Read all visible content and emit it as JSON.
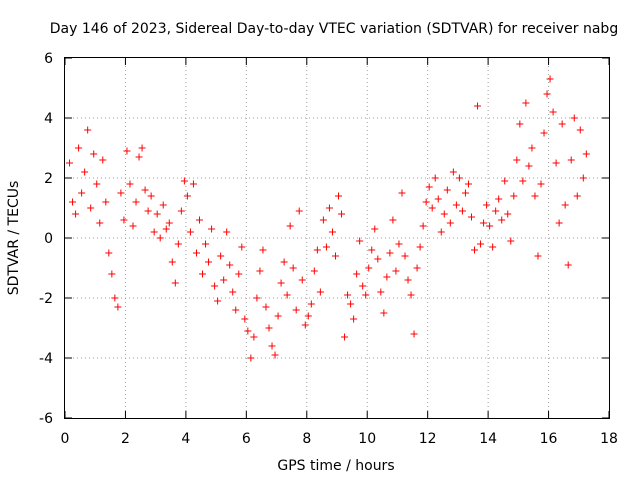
{
  "chart_data": {
    "type": "scatter",
    "title": "Day 146 of 2023, Sidereal Day-to-day VTEC variation (SDTVAR) for receiver nabg",
    "xlabel": "GPS time / hours",
    "ylabel": "SDTVAR / TECUs",
    "xlim": [
      0,
      18
    ],
    "ylim": [
      -6,
      6
    ],
    "xticks": [
      "0",
      "2",
      "4",
      "6",
      "8",
      "10",
      "12",
      "14",
      "16",
      "18"
    ],
    "yticks": [
      "-6",
      "-4",
      "-2",
      "0",
      "2",
      "4",
      "6"
    ],
    "grid": true,
    "legend": null,
    "marker": "+",
    "color": "#ff0000",
    "series": [
      {
        "name": "SDTVAR",
        "x": [
          0.15,
          0.25,
          0.35,
          0.45,
          0.55,
          0.65,
          0.75,
          0.85,
          0.95,
          1.05,
          1.15,
          1.25,
          1.35,
          1.45,
          1.55,
          1.65,
          1.75,
          1.85,
          1.95,
          2.05,
          2.15,
          2.25,
          2.35,
          2.45,
          2.55,
          2.65,
          2.75,
          2.85,
          2.95,
          3.05,
          3.15,
          3.25,
          3.35,
          3.45,
          3.55,
          3.65,
          3.75,
          3.85,
          3.95,
          4.05,
          4.15,
          4.25,
          4.35,
          4.45,
          4.55,
          4.65,
          4.75,
          4.85,
          4.95,
          5.05,
          5.15,
          5.25,
          5.35,
          5.45,
          5.55,
          5.65,
          5.75,
          5.85,
          5.95,
          6.05,
          6.15,
          6.25,
          6.35,
          6.45,
          6.55,
          6.65,
          6.75,
          6.85,
          6.95,
          7.05,
          7.15,
          7.25,
          7.35,
          7.45,
          7.55,
          7.65,
          7.75,
          7.85,
          7.95,
          8.05,
          8.15,
          8.25,
          8.35,
          8.45,
          8.55,
          8.65,
          8.75,
          8.85,
          8.95,
          9.05,
          9.15,
          9.25,
          9.35,
          9.45,
          9.55,
          9.65,
          9.75,
          9.85,
          9.95,
          10.05,
          10.15,
          10.25,
          10.35,
          10.45,
          10.55,
          10.65,
          10.75,
          10.85,
          10.95,
          11.05,
          11.15,
          11.25,
          11.35,
          11.45,
          11.55,
          11.65,
          11.75,
          11.85,
          11.95,
          12.05,
          12.15,
          12.25,
          12.35,
          12.45,
          12.55,
          12.65,
          12.75,
          12.85,
          12.95,
          13.05,
          13.15,
          13.25,
          13.35,
          13.45,
          13.55,
          13.65,
          13.75,
          13.85,
          13.95,
          14.05,
          14.15,
          14.25,
          14.35,
          14.45,
          14.55,
          14.65,
          14.75,
          14.85,
          14.95,
          15.05,
          15.15,
          15.25,
          15.35,
          15.45,
          15.55,
          15.65,
          15.75,
          15.85,
          15.95,
          16.05,
          16.15,
          16.25,
          16.35,
          16.45,
          16.55,
          16.65,
          16.75,
          16.85,
          16.95,
          17.05,
          17.15,
          17.25
        ],
        "y": [
          2.5,
          1.2,
          0.8,
          3.0,
          1.5,
          2.2,
          3.6,
          1.0,
          2.8,
          1.8,
          0.5,
          2.6,
          1.2,
          -0.5,
          -1.2,
          -2.0,
          -2.3,
          1.5,
          0.6,
          2.9,
          1.8,
          0.4,
          1.2,
          2.7,
          3.0,
          1.6,
          0.9,
          1.4,
          0.2,
          0.8,
          0.0,
          1.1,
          0.3,
          0.5,
          -0.8,
          -1.5,
          -0.2,
          0.9,
          1.9,
          1.4,
          0.2,
          1.8,
          -0.5,
          0.6,
          -1.2,
          -0.2,
          -0.8,
          0.3,
          -1.6,
          -2.1,
          -0.6,
          -1.4,
          0.2,
          -0.9,
          -1.8,
          -2.4,
          -1.2,
          -0.3,
          -2.7,
          -3.1,
          -4.0,
          -3.3,
          -2.0,
          -1.1,
          -0.4,
          -2.3,
          -3.0,
          -3.6,
          -3.9,
          -2.6,
          -1.5,
          -0.8,
          -1.9,
          0.4,
          -1.0,
          -2.4,
          0.9,
          -1.4,
          -2.9,
          -2.6,
          -2.2,
          -1.1,
          -0.4,
          -1.8,
          0.6,
          -0.3,
          1.0,
          0.2,
          -0.6,
          1.4,
          0.8,
          -3.3,
          -1.9,
          -2.2,
          -2.7,
          -1.2,
          -0.1,
          -1.6,
          -1.9,
          -1.0,
          -0.4,
          0.3,
          -0.7,
          -1.8,
          -2.5,
          -1.3,
          -0.5,
          0.6,
          -1.1,
          -0.2,
          1.5,
          -0.6,
          -1.4,
          -1.9,
          -3.2,
          -1.0,
          -0.3,
          0.4,
          1.2,
          1.7,
          1.0,
          2.0,
          1.3,
          0.2,
          0.8,
          1.6,
          0.5,
          2.2,
          1.1,
          2.0,
          0.9,
          1.5,
          1.8,
          0.7,
          -0.4,
          4.4,
          -0.2,
          0.5,
          1.1,
          0.4,
          -0.3,
          0.9,
          1.3,
          0.6,
          1.9,
          0.8,
          -0.1,
          1.4,
          2.6,
          3.8,
          1.9,
          4.5,
          2.4,
          3.0,
          1.4,
          -0.6,
          1.8,
          3.5,
          4.8,
          5.3,
          4.2,
          2.5,
          0.5,
          3.8,
          1.1,
          -0.9,
          2.6,
          4.0,
          1.4,
          3.6,
          2.0,
          2.8
        ]
      }
    ]
  }
}
